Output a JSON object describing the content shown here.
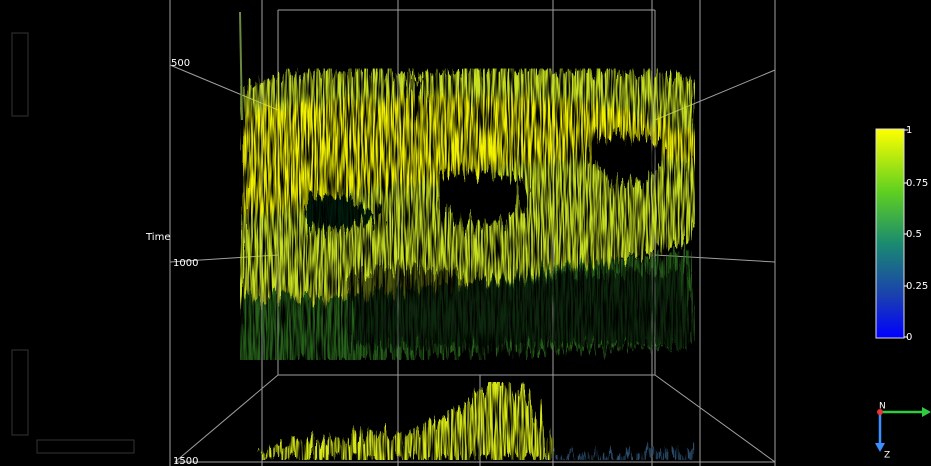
{
  "axis": {
    "label": "Time",
    "ticks": [
      500,
      1000,
      1500
    ]
  },
  "colorbar": {
    "ticks": [
      1,
      0.75,
      0.5,
      0.25,
      0
    ]
  },
  "orientation": {
    "north": "N",
    "vertical": "Z"
  }
}
